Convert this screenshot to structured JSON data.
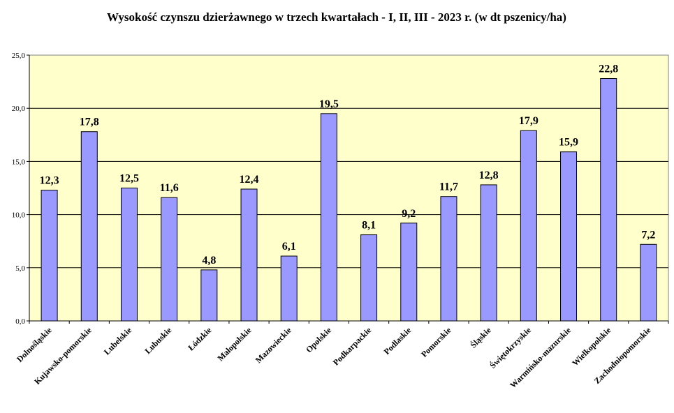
{
  "chart_data": {
    "type": "bar",
    "title": "Wysokość czynszu dzierżawnego w trzech kwartałach - I, II, III - 2023 r. (w dt pszenicy/ha)",
    "xlabel": "",
    "ylabel": "",
    "ylim": [
      0,
      25
    ],
    "y_ticks": [
      "0,0",
      "5,0",
      "10,0",
      "15,0",
      "20,0",
      "25,0"
    ],
    "grid": true,
    "legend": "none",
    "categories": [
      "Dolnośląskie",
      "Kujawsko-pomorskie",
      "Lubelskie",
      "Lubuskie",
      "Łódzkie",
      "Małopolskie",
      "Mazowieckie",
      "Opolskie",
      "Podkarpackie",
      "Podlaskie",
      "Pomorskie",
      "Śląskie",
      "Świętokrzyskie",
      "Warmińsko-mazurskie",
      "Wielkopolskie",
      "Zachodniopomorskie"
    ],
    "values": [
      12.3,
      17.8,
      12.5,
      11.6,
      4.8,
      12.4,
      6.1,
      19.5,
      8.1,
      9.2,
      11.7,
      12.8,
      17.9,
      15.9,
      22.8,
      7.2
    ],
    "value_labels": [
      "12,3",
      "17,8",
      "12,5",
      "11,6",
      "4,8",
      "12,4",
      "6,1",
      "19,5",
      "8,1",
      "9,2",
      "11,7",
      "12,8",
      "17,9",
      "15,9",
      "22,8",
      "7,2"
    ],
    "colors": {
      "bar_fill": "#9999ff",
      "bar_stroke": "#000000",
      "plot_background": "#ffffcc",
      "gridline": "#000000"
    }
  }
}
